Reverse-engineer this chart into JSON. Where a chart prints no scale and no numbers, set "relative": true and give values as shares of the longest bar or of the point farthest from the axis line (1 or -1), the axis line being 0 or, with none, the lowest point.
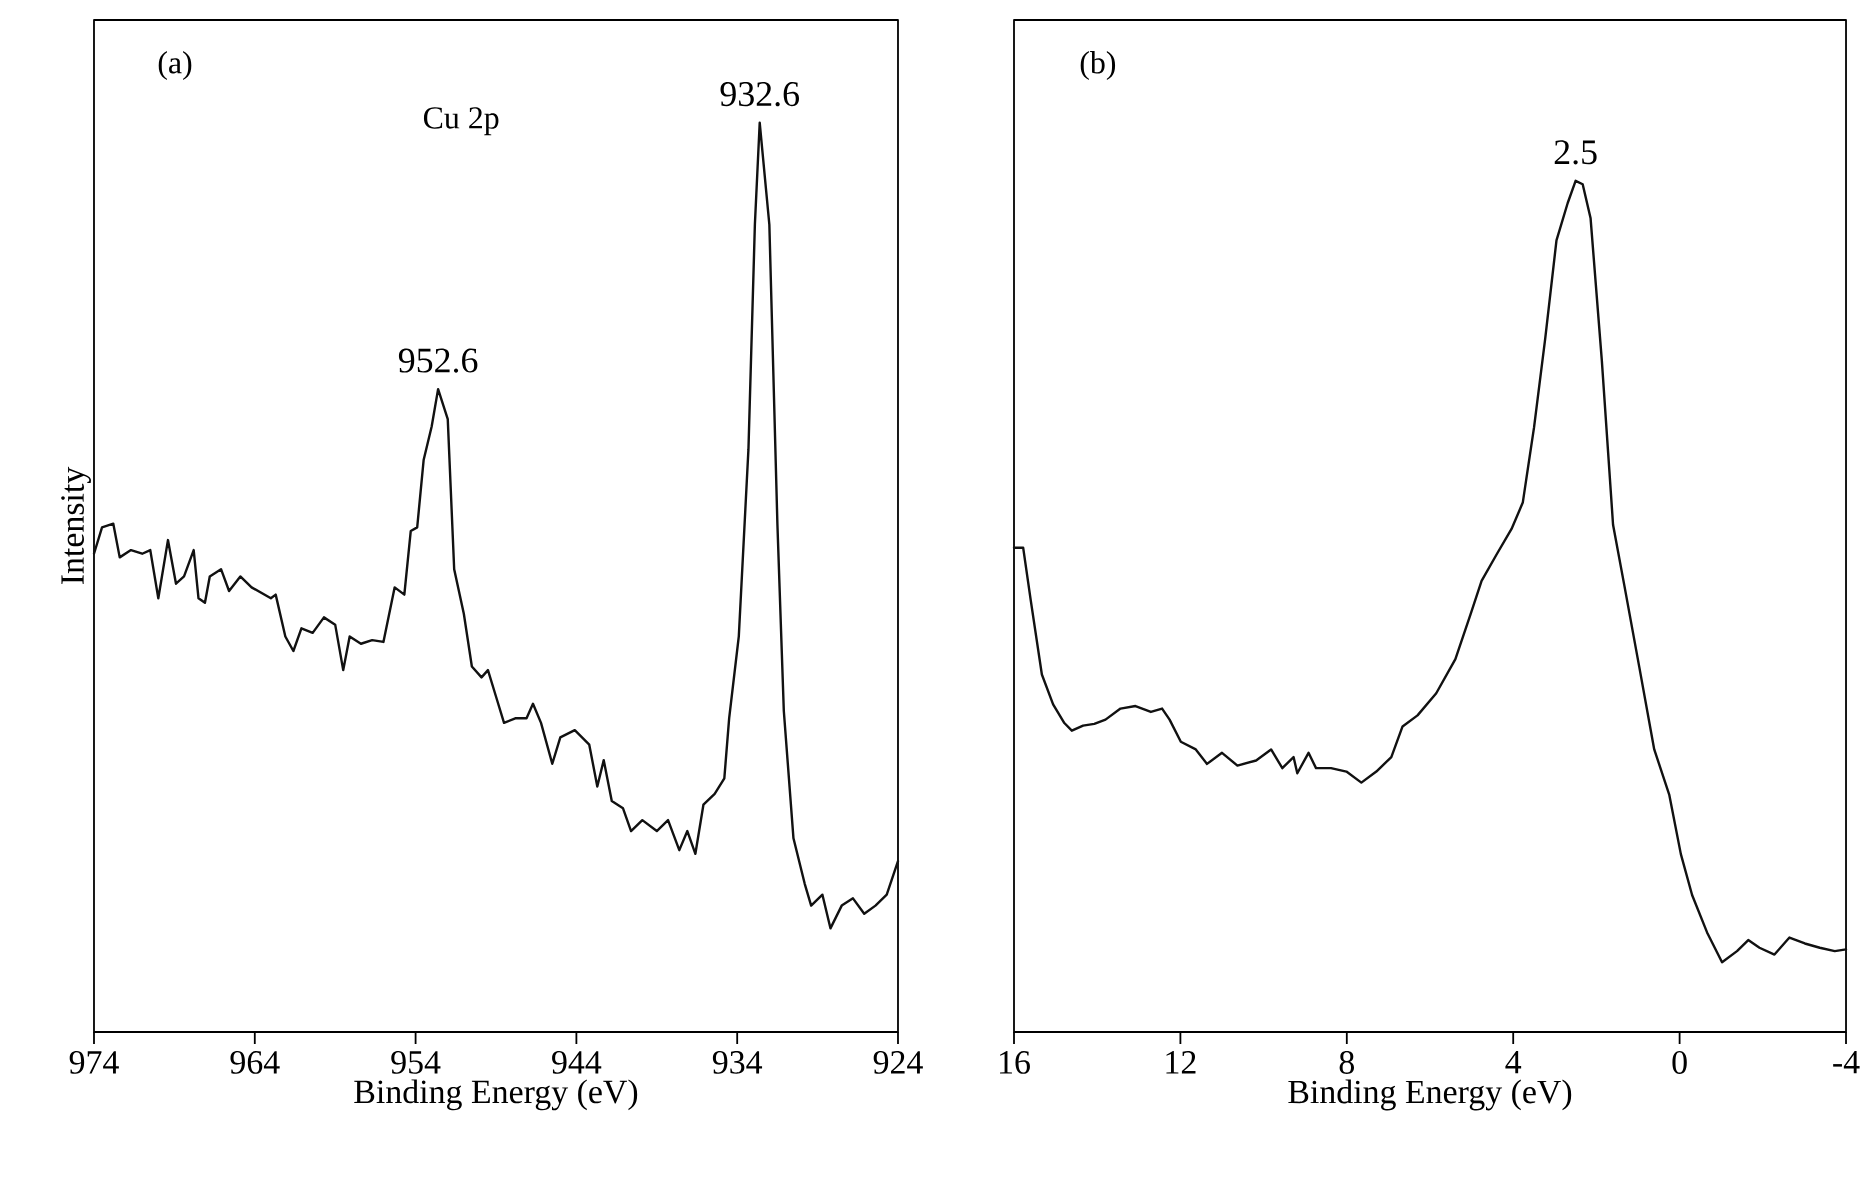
{
  "chart_data": [
    {
      "type": "line",
      "relative": true,
      "color": "#111111",
      "xlabel": "Binding Energy (eV)",
      "ylabel": "Intensity",
      "xlim": [
        974,
        924
      ],
      "xticks": [
        974,
        964,
        954,
        944,
        934,
        924
      ],
      "annotations": [
        "(a)",
        "Cu 2p",
        {
          "text": "952.6",
          "x": 952.6,
          "y": 0.707
        },
        {
          "text": "932.6",
          "x": 932.6,
          "y": 1
        }
      ],
      "x": [
        974.0,
        973.5,
        972.8,
        972.4,
        971.7,
        971.0,
        970.5,
        970.0,
        969.4,
        968.9,
        968.4,
        967.8,
        967.5,
        967.1,
        966.8,
        966.1,
        965.6,
        964.9,
        964.2,
        963.0,
        962.7,
        962.1,
        961.6,
        961.1,
        960.4,
        959.7,
        959.0,
        958.5,
        958.1,
        957.4,
        956.7,
        956.0,
        955.3,
        954.7,
        954.3,
        953.9,
        953.5,
        953.0,
        952.6,
        952.0,
        951.6,
        951.0,
        950.5,
        949.9,
        949.5,
        949.0,
        948.5,
        947.8,
        947.1,
        946.7,
        946.2,
        945.5,
        945.0,
        944.1,
        943.2,
        942.7,
        942.3,
        941.8,
        941.1,
        940.6,
        939.9,
        939.0,
        938.3,
        937.6,
        937.1,
        936.6,
        936.1,
        935.4,
        934.8,
        934.5,
        933.9,
        933.3,
        932.9,
        932.6,
        932.0,
        931.5,
        931.1,
        930.5,
        929.8,
        929.4,
        928.7,
        928.2,
        927.5,
        926.8,
        926.1,
        925.4,
        924.7,
        924.0
      ],
      "values": [
        0.526,
        0.555,
        0.559,
        0.522,
        0.53,
        0.526,
        0.53,
        0.477,
        0.541,
        0.493,
        0.501,
        0.53,
        0.477,
        0.472,
        0.501,
        0.509,
        0.485,
        0.501,
        0.489,
        0.477,
        0.481,
        0.435,
        0.419,
        0.444,
        0.439,
        0.456,
        0.448,
        0.398,
        0.435,
        0.427,
        0.431,
        0.429,
        0.489,
        0.481,
        0.551,
        0.555,
        0.629,
        0.666,
        0.707,
        0.674,
        0.509,
        0.46,
        0.402,
        0.39,
        0.398,
        0.369,
        0.34,
        0.345,
        0.345,
        0.361,
        0.34,
        0.295,
        0.324,
        0.332,
        0.316,
        0.27,
        0.299,
        0.254,
        0.246,
        0.221,
        0.233,
        0.221,
        0.233,
        0.2,
        0.221,
        0.196,
        0.25,
        0.262,
        0.279,
        0.345,
        0.435,
        0.641,
        0.888,
        1,
        0.888,
        0.559,
        0.353,
        0.213,
        0.163,
        0.139,
        0.151,
        0.114,
        0.139,
        0.147,
        0.13,
        0.139,
        0.151,
        0.188
      ]
    },
    {
      "type": "line",
      "relative": true,
      "color": "#111111",
      "xlabel": "Binding Energy (eV)",
      "xlim": [
        16,
        -4
      ],
      "xticks": [
        16,
        12,
        8,
        4,
        0,
        -4
      ],
      "annotations": [
        "(b)",
        {
          "text": "2.5",
          "x": 2.5,
          "y": 1
        }
      ],
      "x": [
        16.0,
        15.78,
        15.6,
        15.33,
        15.06,
        14.79,
        14.61,
        14.34,
        14.07,
        13.8,
        13.44,
        13.08,
        12.71,
        12.44,
        12.26,
        11.99,
        11.63,
        11.36,
        11.0,
        10.63,
        10.18,
        9.82,
        9.55,
        9.28,
        9.19,
        8.92,
        8.74,
        8.38,
        8.01,
        7.65,
        7.29,
        6.93,
        6.66,
        6.3,
        5.85,
        5.39,
        5.03,
        4.76,
        4.4,
        4.04,
        3.77,
        3.5,
        3.23,
        2.96,
        2.69,
        2.5,
        2.33,
        2.14,
        1.87,
        1.6,
        1.33,
        0.97,
        0.61,
        0.25,
        -0.03,
        -0.3,
        -0.66,
        -1.02,
        -1.38,
        -1.65,
        -1.92,
        -2.28,
        -2.64,
        -3.01,
        -3.37,
        -3.73,
        -4.0
      ],
      "values": [
        0.569,
        0.569,
        0.508,
        0.42,
        0.385,
        0.363,
        0.354,
        0.36,
        0.362,
        0.367,
        0.38,
        0.383,
        0.376,
        0.38,
        0.367,
        0.341,
        0.332,
        0.315,
        0.328,
        0.313,
        0.319,
        0.332,
        0.31,
        0.323,
        0.304,
        0.328,
        0.31,
        0.31,
        0.306,
        0.293,
        0.306,
        0.323,
        0.359,
        0.372,
        0.398,
        0.438,
        0.49,
        0.53,
        0.561,
        0.591,
        0.622,
        0.71,
        0.815,
        0.93,
        0.974,
        1,
        0.996,
        0.956,
        0.789,
        0.596,
        0.525,
        0.429,
        0.332,
        0.279,
        0.209,
        0.161,
        0.117,
        0.082,
        0.095,
        0.108,
        0.099,
        0.091,
        0.111,
        0.104,
        0.099,
        0.095,
        0.097
      ]
    }
  ]
}
